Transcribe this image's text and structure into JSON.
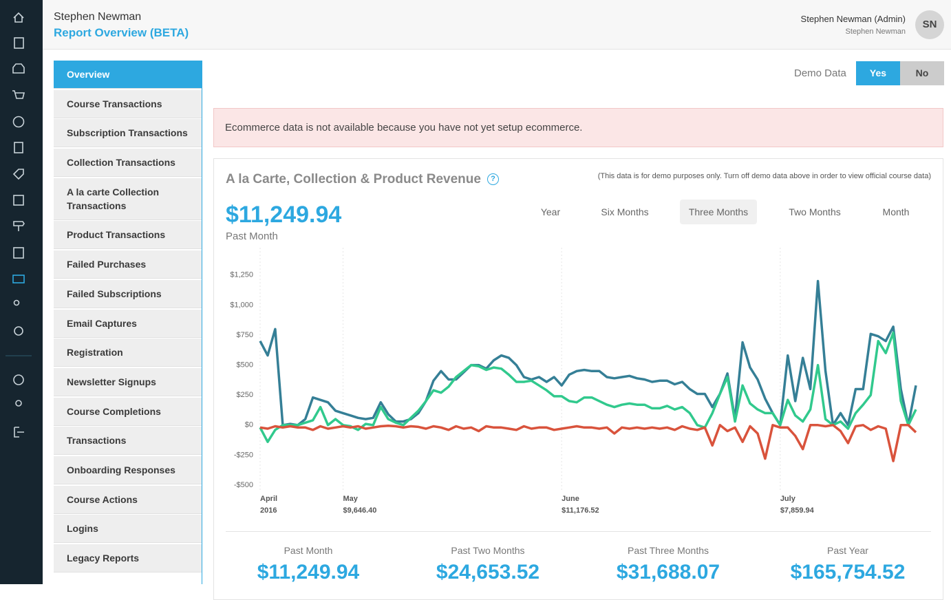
{
  "header": {
    "user_name": "Stephen Newman",
    "page_title": "Report Overview (BETA)",
    "account_name": "Stephen Newman (Admin)",
    "account_sub": "Stephen Newman",
    "avatar": "SN"
  },
  "nav": {
    "items": [
      "Overview",
      "Course Transactions",
      "Subscription Transactions",
      "Collection Transactions",
      "A la carte Collection Transactions",
      "Product Transactions",
      "Failed Purchases",
      "Failed Subscriptions",
      "Email Captures",
      "Registration",
      "Newsletter Signups",
      "Course Completions",
      "Transactions",
      "Onboarding Responses",
      "Course Actions",
      "Logins",
      "Legacy Reports"
    ]
  },
  "demo_toggle": {
    "label": "Demo Data",
    "options": [
      "Yes",
      "No"
    ]
  },
  "alert": "Ecommerce data is not available because you have not yet setup ecommerce.",
  "card": {
    "title": "A la Carte, Collection & Product Revenue",
    "note": "(This data is for demo purposes only. Turn off demo data above in order to view official course data)",
    "headline_value": "$11,249.94",
    "headline_label": "Past Month",
    "periods": [
      "Year",
      "Six Months",
      "Three Months",
      "Two Months",
      "Month"
    ],
    "summary": [
      {
        "label": "Past Month",
        "value": "$11,249.94"
      },
      {
        "label": "Past Two Months",
        "value": "$24,653.52"
      },
      {
        "label": "Past Three Months",
        "value": "$31,688.07"
      },
      {
        "label": "Past Year",
        "value": "$165,754.52"
      }
    ]
  },
  "chart_data": {
    "type": "line",
    "categories": [
      "April",
      null,
      null,
      null,
      null,
      null,
      null,
      null,
      null,
      null,
      null,
      "May",
      null,
      null,
      null,
      null,
      null,
      null,
      null,
      null,
      null,
      null,
      null,
      null,
      null,
      null,
      null,
      null,
      null,
      null,
      null,
      null,
      null,
      null,
      null,
      null,
      null,
      null,
      null,
      null,
      "June",
      null,
      null,
      null,
      null,
      null,
      null,
      null,
      null,
      null,
      null,
      null,
      null,
      null,
      null,
      null,
      null,
      null,
      null,
      null,
      null,
      null,
      null,
      null,
      null,
      null,
      null,
      null,
      null,
      "July",
      null,
      null,
      null,
      null,
      null,
      null,
      null,
      null,
      null,
      null,
      null,
      null,
      null,
      null,
      null,
      null,
      null,
      null
    ],
    "category_sublabels": [
      "2016",
      null,
      null,
      null,
      null,
      null,
      null,
      null,
      null,
      null,
      null,
      "$9,646.40",
      null,
      null,
      null,
      null,
      null,
      null,
      null,
      null,
      null,
      null,
      null,
      null,
      null,
      null,
      null,
      null,
      null,
      null,
      null,
      null,
      null,
      null,
      null,
      null,
      null,
      null,
      null,
      null,
      "$11,176.52",
      null,
      null,
      null,
      null,
      null,
      null,
      null,
      null,
      null,
      null,
      null,
      null,
      null,
      null,
      null,
      null,
      null,
      null,
      null,
      null,
      null,
      null,
      null,
      null,
      null,
      null,
      null,
      null,
      "$7,859.94",
      null,
      null,
      null,
      null,
      null,
      null,
      null,
      null,
      null,
      null,
      null,
      null,
      null,
      null,
      null,
      null,
      null,
      null
    ],
    "series": [
      {
        "color": "#357f96",
        "values": [
          700,
          580,
          800,
          0,
          10,
          0,
          50,
          230,
          210,
          190,
          120,
          100,
          80,
          60,
          50,
          60,
          190,
          90,
          30,
          30,
          50,
          100,
          200,
          370,
          450,
          380,
          380,
          440,
          500,
          500,
          470,
          540,
          580,
          560,
          500,
          400,
          380,
          400,
          360,
          400,
          330,
          420,
          450,
          460,
          450,
          450,
          400,
          390,
          400,
          410,
          390,
          380,
          360,
          370,
          370,
          340,
          360,
          300,
          260,
          260,
          150,
          260,
          430,
          50,
          690,
          480,
          380,
          220,
          100,
          0,
          580,
          200,
          560,
          300,
          1200,
          450,
          0,
          100,
          0,
          300,
          300,
          760,
          740,
          700,
          820,
          300,
          0,
          330
        ]
      },
      {
        "color": "#31c98d",
        "values": [
          -20,
          -140,
          -40,
          0,
          0,
          0,
          20,
          40,
          150,
          0,
          50,
          0,
          -10,
          -40,
          10,
          0,
          150,
          50,
          20,
          0,
          60,
          120,
          200,
          290,
          270,
          320,
          400,
          450,
          500,
          490,
          460,
          480,
          470,
          420,
          360,
          360,
          370,
          330,
          290,
          240,
          240,
          200,
          190,
          230,
          230,
          200,
          170,
          150,
          170,
          180,
          170,
          170,
          140,
          140,
          160,
          130,
          150,
          100,
          0,
          -20,
          100,
          260,
          400,
          30,
          330,
          180,
          130,
          100,
          100,
          0,
          210,
          80,
          30,
          130,
          500,
          50,
          0,
          30,
          -30,
          100,
          170,
          250,
          700,
          600,
          770,
          200,
          0,
          130
        ]
      },
      {
        "color": "#d9533c",
        "values": [
          -20,
          -30,
          -10,
          -20,
          -10,
          -20,
          -20,
          -40,
          -10,
          -30,
          -20,
          -10,
          -20,
          -10,
          -30,
          -20,
          -10,
          -5,
          -10,
          -20,
          -10,
          -15,
          -30,
          -10,
          -20,
          -40,
          -10,
          -30,
          -20,
          -50,
          -10,
          -20,
          -20,
          -30,
          -40,
          -10,
          -30,
          -20,
          -20,
          -40,
          -30,
          -20,
          -10,
          -20,
          -20,
          -30,
          -20,
          -70,
          -20,
          -30,
          -20,
          -30,
          -20,
          -30,
          -20,
          -40,
          -10,
          -30,
          -40,
          -20,
          -170,
          0,
          -50,
          -20,
          -140,
          -10,
          -70,
          -280,
          0,
          -20,
          -20,
          -90,
          -200,
          0,
          0,
          -10,
          0,
          -50,
          -150,
          -10,
          0,
          -40,
          -10,
          -30,
          -300,
          0,
          0,
          -60
        ]
      }
    ],
    "ylim": [
      -500,
      1500
    ],
    "yticks": [
      {
        "value": -500,
        "label": "-$500"
      },
      {
        "value": -250,
        "label": "-$250"
      },
      {
        "value": 0,
        "label": "$0"
      },
      {
        "value": 250,
        "label": "$250"
      },
      {
        "value": 500,
        "label": "$500"
      },
      {
        "value": 750,
        "label": "$750"
      },
      {
        "value": 1000,
        "label": "$1,000"
      },
      {
        "value": 1250,
        "label": "$1,250"
      }
    ],
    "grid": false
  }
}
